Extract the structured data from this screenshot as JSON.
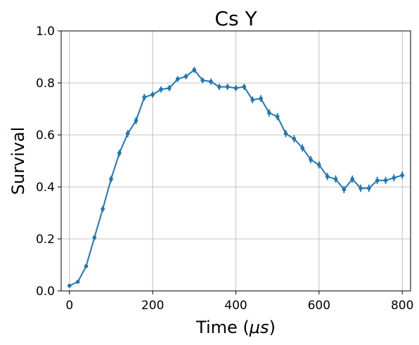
{
  "chart_data": {
    "type": "line",
    "title": "Cs Y",
    "xlabel": "Time (μs)",
    "ylabel": "Survival",
    "xlim": [
      -20,
      820
    ],
    "ylim": [
      0.0,
      1.0
    ],
    "x_ticks": [
      "0",
      "200",
      "400",
      "600",
      "800"
    ],
    "y_ticks": [
      "0.0",
      "0.2",
      "0.4",
      "0.6",
      "0.8",
      "1.0"
    ],
    "grid": true,
    "color": "#1f77b4",
    "series": [
      {
        "x": [
          0,
          20,
          40,
          60,
          80,
          100,
          120,
          140,
          160,
          180,
          200,
          220,
          240,
          260,
          280,
          300,
          320,
          340,
          360,
          380,
          400,
          420,
          440,
          460,
          480,
          500,
          520,
          540,
          560,
          580,
          600,
          620,
          640,
          660,
          680,
          700,
          720,
          740,
          760,
          780,
          800
        ],
        "y": [
          0.02,
          0.035,
          0.095,
          0.205,
          0.315,
          0.43,
          0.53,
          0.605,
          0.655,
          0.745,
          0.755,
          0.775,
          0.78,
          0.815,
          0.825,
          0.85,
          0.81,
          0.805,
          0.785,
          0.785,
          0.78,
          0.785,
          0.735,
          0.74,
          0.685,
          0.67,
          0.605,
          0.585,
          0.55,
          0.505,
          0.485,
          0.44,
          0.43,
          0.39,
          0.43,
          0.395,
          0.395,
          0.425,
          0.425,
          0.435,
          0.445
        ],
        "err": [
          0.005,
          0.006,
          0.007,
          0.01,
          0.012,
          0.013,
          0.013,
          0.014,
          0.014,
          0.013,
          0.012,
          0.012,
          0.012,
          0.011,
          0.011,
          0.011,
          0.011,
          0.012,
          0.012,
          0.012,
          0.012,
          0.012,
          0.013,
          0.013,
          0.014,
          0.014,
          0.014,
          0.014,
          0.014,
          0.014,
          0.014,
          0.014,
          0.014,
          0.014,
          0.014,
          0.014,
          0.014,
          0.014,
          0.014,
          0.014,
          0.014
        ]
      }
    ]
  }
}
